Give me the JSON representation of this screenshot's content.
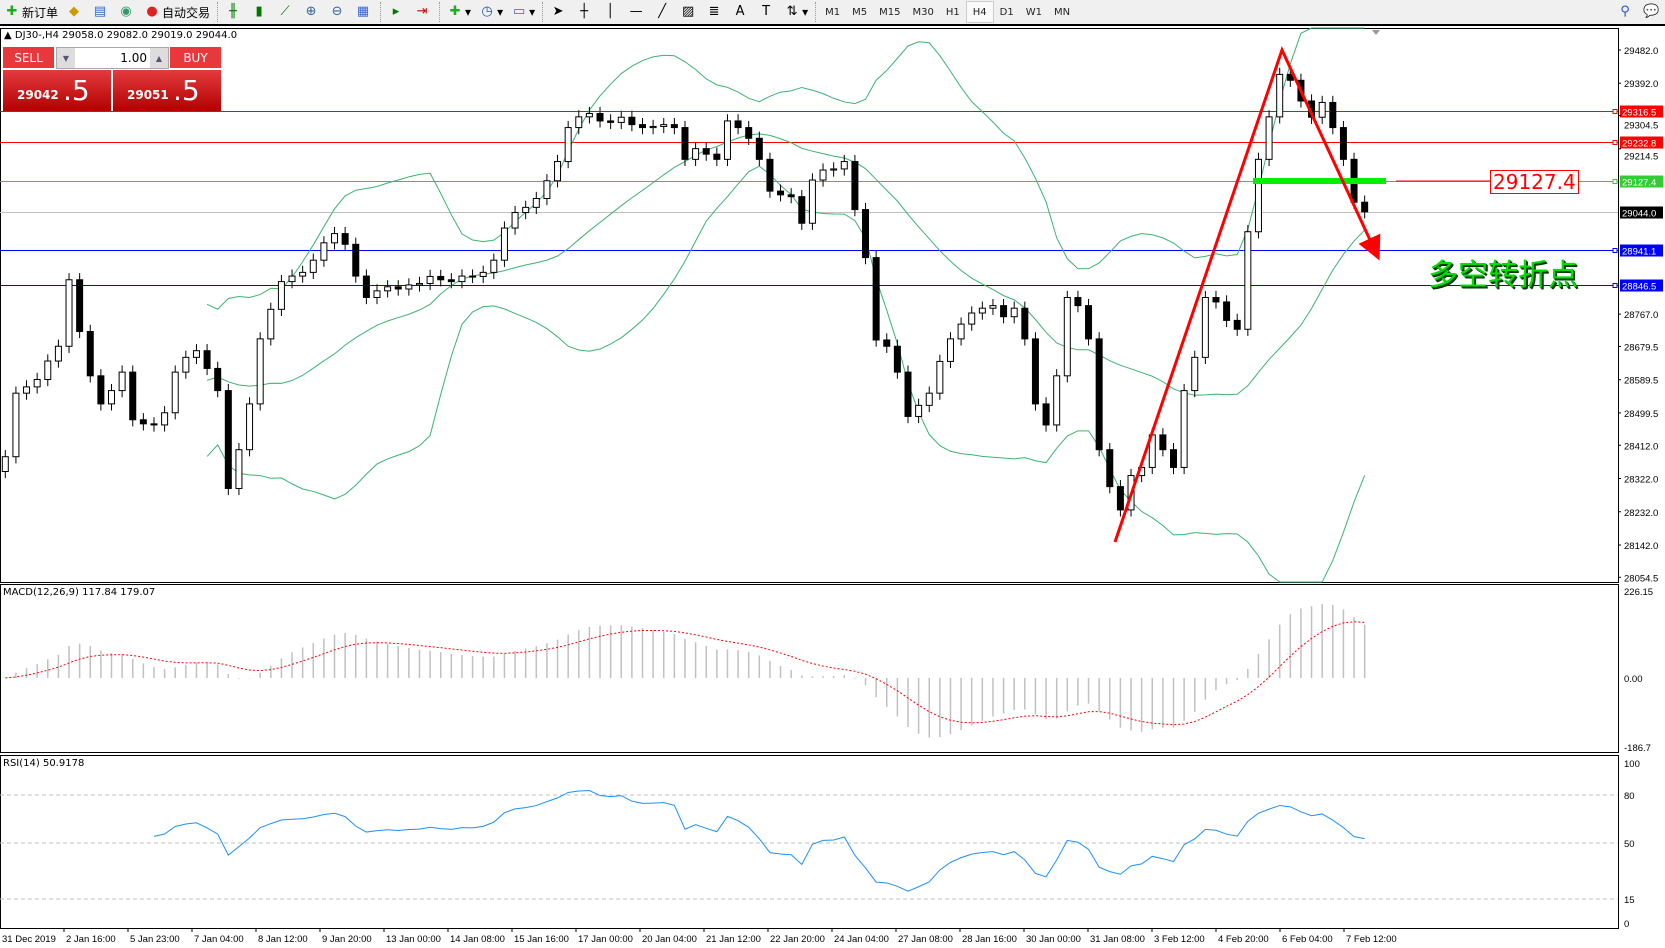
{
  "toolbar": {
    "new_order": "新订单",
    "auto_trading": "自动交易",
    "timeframes": [
      "M1",
      "M5",
      "M15",
      "M30",
      "H1",
      "H4",
      "D1",
      "W1",
      "MN"
    ],
    "active_timeframe": "H4"
  },
  "chart_header": "DJ30-,H4  29058.0 29082.0 29019.0 29044.0",
  "trade_panel": {
    "sell_label": "SELL",
    "buy_label": "BUY",
    "lot": "1.00",
    "sell_price_main": "29042",
    "sell_price_big": ".5",
    "buy_price_main": "29051",
    "buy_price_big": ".5"
  },
  "macd_label": "MACD(12,26,9) 117.84 179.07",
  "rsi_label": "RSI(14) 50.9178",
  "annotation_text": "多空转折点",
  "annotation_level": "29127.4",
  "colors": {
    "bull": "#ffffff",
    "bear": "#000000",
    "bands": "#3cb371",
    "rsi": "#1e90ff",
    "signal": "#ff0000",
    "arrow": "#ff0000"
  },
  "chart_data": {
    "type": "candlestick",
    "symbol": "DJ30-",
    "timeframe": "H4",
    "ylim": [
      28054.5,
      29530
    ],
    "price_ticks": [
      "29482.0",
      "29392.0",
      "29304.5",
      "29214.5",
      "28767.0",
      "28679.5",
      "28589.5",
      "28499.5",
      "28412.0",
      "28322.0",
      "28232.0",
      "28142.0",
      "28054.5"
    ],
    "x_labels": [
      "31 Dec 2019",
      "2 Jan 16:00",
      "5 Jan 23:00",
      "7 Jan 04:00",
      "8 Jan 12:00",
      "9 Jan 20:00",
      "13 Jan 00:00",
      "14 Jan 08:00",
      "15 Jan 16:00",
      "17 Jan 00:00",
      "20 Jan 04:00",
      "21 Jan 12:00",
      "22 Jan 20:00",
      "24 Jan 04:00",
      "27 Jan 08:00",
      "28 Jan 16:00",
      "30 Jan 00:00",
      "31 Jan 08:00",
      "3 Feb 12:00",
      "4 Feb 20:00",
      "6 Feb 04:00",
      "7 Feb 12:00"
    ],
    "closes": [
      28381,
      28553,
      28570,
      28590,
      28640,
      28680,
      28860,
      28720,
      28600,
      28524,
      28560,
      28610,
      28481,
      28470,
      28467,
      28500,
      28610,
      28650,
      28668,
      28620,
      28560,
      28295,
      28400,
      28524,
      28700,
      28780,
      28855,
      28870,
      28880,
      28913,
      28960,
      28985,
      28956,
      28870,
      28812,
      28830,
      28841,
      28835,
      28846,
      28850,
      28869,
      28860,
      28855,
      28870,
      28869,
      28880,
      28913,
      29000,
      29042,
      29056,
      29080,
      29128,
      29180,
      29272,
      29301,
      29310,
      29290,
      29286,
      29300,
      29280,
      29272,
      29275,
      29280,
      29272,
      29186,
      29215,
      29200,
      29186,
      29290,
      29272,
      29243,
      29186,
      29100,
      29090,
      29085,
      29013,
      29130,
      29157,
      29160,
      29180,
      29050,
      28920,
      28697,
      28680,
      28610,
      28490,
      28520,
      28553,
      28639,
      28700,
      28740,
      28770,
      28783,
      28790,
      28760,
      28783,
      28700,
      28524,
      28467,
      28600,
      28812,
      28790,
      28700,
      28400,
      28300,
      28237,
      28330,
      28352,
      28440,
      28400,
      28352,
      28560,
      28650,
      28812,
      28800,
      28750,
      28726,
      28990,
      29186,
      29301,
      29416,
      29400,
      29344,
      29300,
      29340,
      29272,
      29186,
      29070,
      29044
    ],
    "horizontal_lines": [
      {
        "price": 29316.5,
        "label": "29316.5",
        "color": "#ff0000"
      },
      {
        "price": 29232.8,
        "label": "29232.8",
        "color": "#ff0000"
      },
      {
        "price": 29127.4,
        "label": "29127.4",
        "color": "#32cd32"
      },
      {
        "price": 29044.0,
        "label": "29044.0",
        "color": "#000000"
      },
      {
        "price": 28941.1,
        "label": "28941.1",
        "color": "#0000ff"
      },
      {
        "price": 28846.5,
        "label": "28846.5",
        "color": "#0000ff"
      }
    ],
    "indicators": [
      "Bollinger Bands",
      "MACD(12,26,9)",
      "RSI(14)"
    ],
    "macd_ticks": [
      "226.15",
      "0.00",
      "-186.7"
    ],
    "macd_ylim": [
      -186.7,
      226.15
    ],
    "rsi_ticks": [
      "100",
      "80",
      "50",
      "15",
      "0"
    ],
    "rsi_levels": [
      80,
      50,
      15
    ]
  }
}
